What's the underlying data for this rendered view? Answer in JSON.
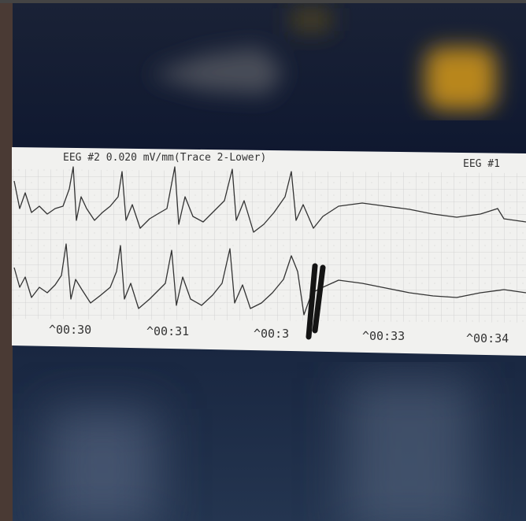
{
  "strip": {
    "header": "EEG #2 0.020 mV/mm(Trace 2-Lower)",
    "channel": "EEG #1",
    "time_labels": [
      "^00:30",
      "^00:31",
      "^00:3",
      "^00:33",
      "^00:34"
    ]
  }
}
